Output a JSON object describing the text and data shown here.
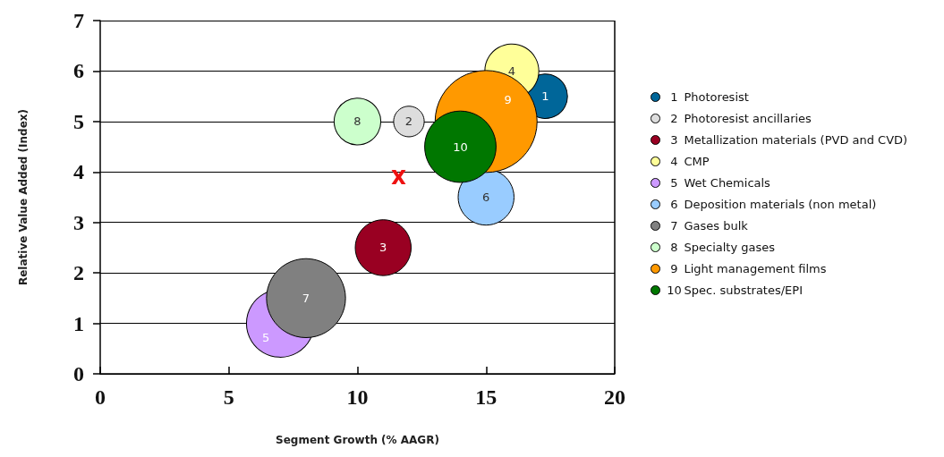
{
  "chart_data": {
    "type": "bubble",
    "xlabel": "Segment Growth (% AAGR)",
    "ylabel": "Relative Value Added (Index)",
    "xlim": [
      0,
      20
    ],
    "xticks": [
      0,
      5,
      10,
      15,
      20
    ],
    "ylim": [
      0,
      7
    ],
    "yticks": [
      0,
      1,
      2,
      3,
      4,
      5,
      6,
      7
    ],
    "grid": "y",
    "legend": "right",
    "series": [
      {
        "name": "Photoresist",
        "color": "#006699",
        "x": [
          17.3
        ],
        "values": [
          5.5
        ],
        "sizes": [
          0.19
        ]
      },
      {
        "name": "Photoresist ancillaries",
        "color": "#dddddd",
        "x": [
          12
        ],
        "values": [
          5
        ],
        "sizes": [
          0.09
        ]
      },
      {
        "name": "Metallization materials (PVD and CVD)",
        "color": "#990022",
        "x": [
          11
        ],
        "values": [
          2.5
        ],
        "sizes": [
          0.3
        ]
      },
      {
        "name": "CMP",
        "color": "#ffff99",
        "x": [
          16
        ],
        "values": [
          6
        ],
        "sizes": [
          0.28
        ]
      },
      {
        "name": "Wet Chemicals",
        "color": "#cc99ff",
        "x": [
          7
        ],
        "values": [
          1
        ],
        "sizes": [
          0.44
        ]
      },
      {
        "name": "Deposition materials (non metal)",
        "color": "#99ccff",
        "x": [
          15
        ],
        "values": [
          3.5
        ],
        "sizes": [
          0.3
        ]
      },
      {
        "name": "Gases bulk",
        "color": "#808080",
        "x": [
          8
        ],
        "values": [
          1.5
        ],
        "sizes": [
          0.6
        ]
      },
      {
        "name": "Specialty gases",
        "color": "#ccffcc",
        "x": [
          10
        ],
        "values": [
          5
        ],
        "sizes": [
          0.21
        ]
      },
      {
        "name": "Light management films",
        "color": "#ff9900",
        "x": [
          15
        ],
        "values": [
          5
        ],
        "sizes": [
          1
        ]
      },
      {
        "name": "Spec. substrates/EPI",
        "color": "#007700",
        "x": [
          14
        ],
        "values": [
          4.5
        ],
        "sizes": [
          0.49
        ]
      },
      {
        "type": "scatter",
        "marker": "cross",
        "color": "#ee1111",
        "x": [
          11.6
        ],
        "values": [
          3.9
        ]
      }
    ],
    "annotations": [
      {
        "text": "1",
        "x": 17.3,
        "y": 5.5
      },
      {
        "text": "2",
        "x": 12,
        "y": 5
      },
      {
        "text": "3",
        "x": 11,
        "y": 2.5
      },
      {
        "text": "4",
        "x": 16,
        "y": 6
      },
      {
        "text": "5",
        "x": 7,
        "y": 1
      },
      {
        "text": "6",
        "x": 15,
        "y": 3.5
      },
      {
        "text": "7",
        "x": 8,
        "y": 1.5
      },
      {
        "text": "8",
        "x": 10,
        "y": 5
      },
      {
        "text": "9",
        "x": 15,
        "y": 5
      },
      {
        "text": "10",
        "x": 14,
        "y": 4.5
      }
    ]
  }
}
